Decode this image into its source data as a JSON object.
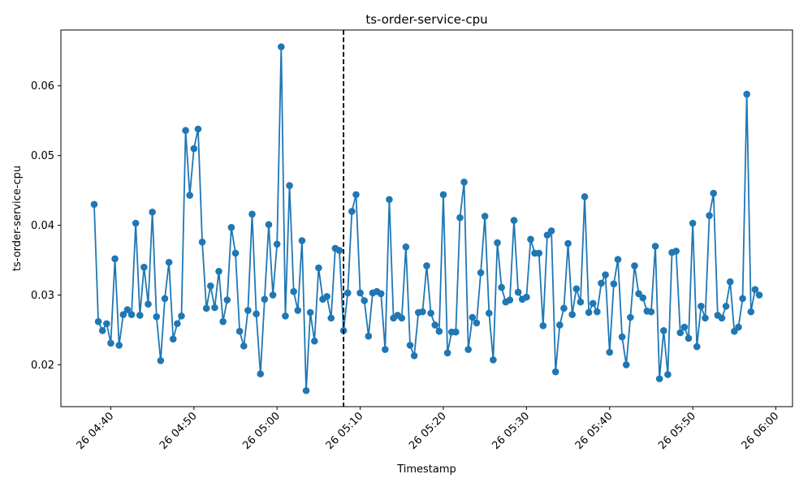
{
  "chart_data": {
    "type": "line",
    "title": "ts-order-service-cpu",
    "xlabel": "Timestamp",
    "ylabel": "ts-order-service-cpu",
    "x_axis": {
      "start": "2024-01-26T04:34:00",
      "end": "2024-01-26T06:02:00"
    },
    "ylim": [
      0.014,
      0.068
    ],
    "xticks": [
      {
        "t": "2024-01-26T04:40:00",
        "label": "26 04:40"
      },
      {
        "t": "2024-01-26T04:50:00",
        "label": "26 04:50"
      },
      {
        "t": "2024-01-26T05:00:00",
        "label": "26 05:00"
      },
      {
        "t": "2024-01-26T05:10:00",
        "label": "26 05:10"
      },
      {
        "t": "2024-01-26T05:20:00",
        "label": "26 05:20"
      },
      {
        "t": "2024-01-26T05:30:00",
        "label": "26 05:30"
      },
      {
        "t": "2024-01-26T05:40:00",
        "label": "26 05:40"
      },
      {
        "t": "2024-01-26T05:50:00",
        "label": "26 05:50"
      },
      {
        "t": "2024-01-26T06:00:00",
        "label": "26 06:00"
      }
    ],
    "yticks": [
      {
        "v": 0.02,
        "label": "0.02"
      },
      {
        "v": 0.03,
        "label": "0.03"
      },
      {
        "v": 0.04,
        "label": "0.04"
      },
      {
        "v": 0.05,
        "label": "0.05"
      },
      {
        "v": 0.06,
        "label": "0.06"
      }
    ],
    "vline": {
      "t": "2024-01-26T05:08:00",
      "style": "dashed",
      "color": "#000000"
    },
    "series": [
      {
        "color": "#1f77b4",
        "marker": "circle",
        "x_start": "2024-01-26T04:38:00",
        "x_step": "30s",
        "values": [
          0.043,
          0.0262,
          0.0249,
          0.0259,
          0.0231,
          0.0352,
          0.0228,
          0.0272,
          0.0279,
          0.0272,
          0.0403,
          0.0271,
          0.034,
          0.0287,
          0.0419,
          0.0269,
          0.0206,
          0.0295,
          0.0347,
          0.0237,
          0.0259,
          0.027,
          0.0536,
          0.0443,
          0.051,
          0.0538,
          0.0376,
          0.0281,
          0.0313,
          0.0282,
          0.0334,
          0.0262,
          0.0293,
          0.0397,
          0.036,
          0.0248,
          0.0227,
          0.0278,
          0.0416,
          0.0273,
          0.0187,
          0.0294,
          0.0401,
          0.03,
          0.0373,
          0.0656,
          0.027,
          0.0457,
          0.0305,
          0.0278,
          0.0378,
          0.0163,
          0.0275,
          0.0234,
          0.0339,
          0.0294,
          0.0298,
          0.0267,
          0.0367,
          0.0364,
          0.0249,
          0.0303,
          0.042,
          0.0444,
          0.0303,
          0.0292,
          0.0241,
          0.0303,
          0.0305,
          0.0302,
          0.0222,
          0.0437,
          0.0267,
          0.0271,
          0.0267,
          0.0369,
          0.0228,
          0.0213,
          0.0275,
          0.0276,
          0.0342,
          0.0274,
          0.0257,
          0.0248,
          0.0444,
          0.0217,
          0.0247,
          0.0247,
          0.0411,
          0.0462,
          0.0222,
          0.0268,
          0.026,
          0.0332,
          0.0413,
          0.0274,
          0.0207,
          0.0375,
          0.0311,
          0.029,
          0.0293,
          0.0407,
          0.0304,
          0.0294,
          0.0297,
          0.038,
          0.036,
          0.036,
          0.0256,
          0.0386,
          0.0392,
          0.019,
          0.0257,
          0.0281,
          0.0374,
          0.0272,
          0.0309,
          0.029,
          0.0441,
          0.0275,
          0.0288,
          0.0276,
          0.0317,
          0.0329,
          0.0218,
          0.0316,
          0.0351,
          0.024,
          0.02,
          0.0268,
          0.0342,
          0.0302,
          0.0296,
          0.0277,
          0.0276,
          0.037,
          0.018,
          0.0249,
          0.0186,
          0.0361,
          0.0363,
          0.0246,
          0.0254,
          0.0238,
          0.0403,
          0.0226,
          0.0284,
          0.0267,
          0.0414,
          0.0446,
          0.0271,
          0.0267,
          0.0284,
          0.0319,
          0.0248,
          0.0254,
          0.0295,
          0.0588,
          0.0276,
          0.0308,
          0.03
        ]
      }
    ],
    "grid": false,
    "legend": "none"
  }
}
